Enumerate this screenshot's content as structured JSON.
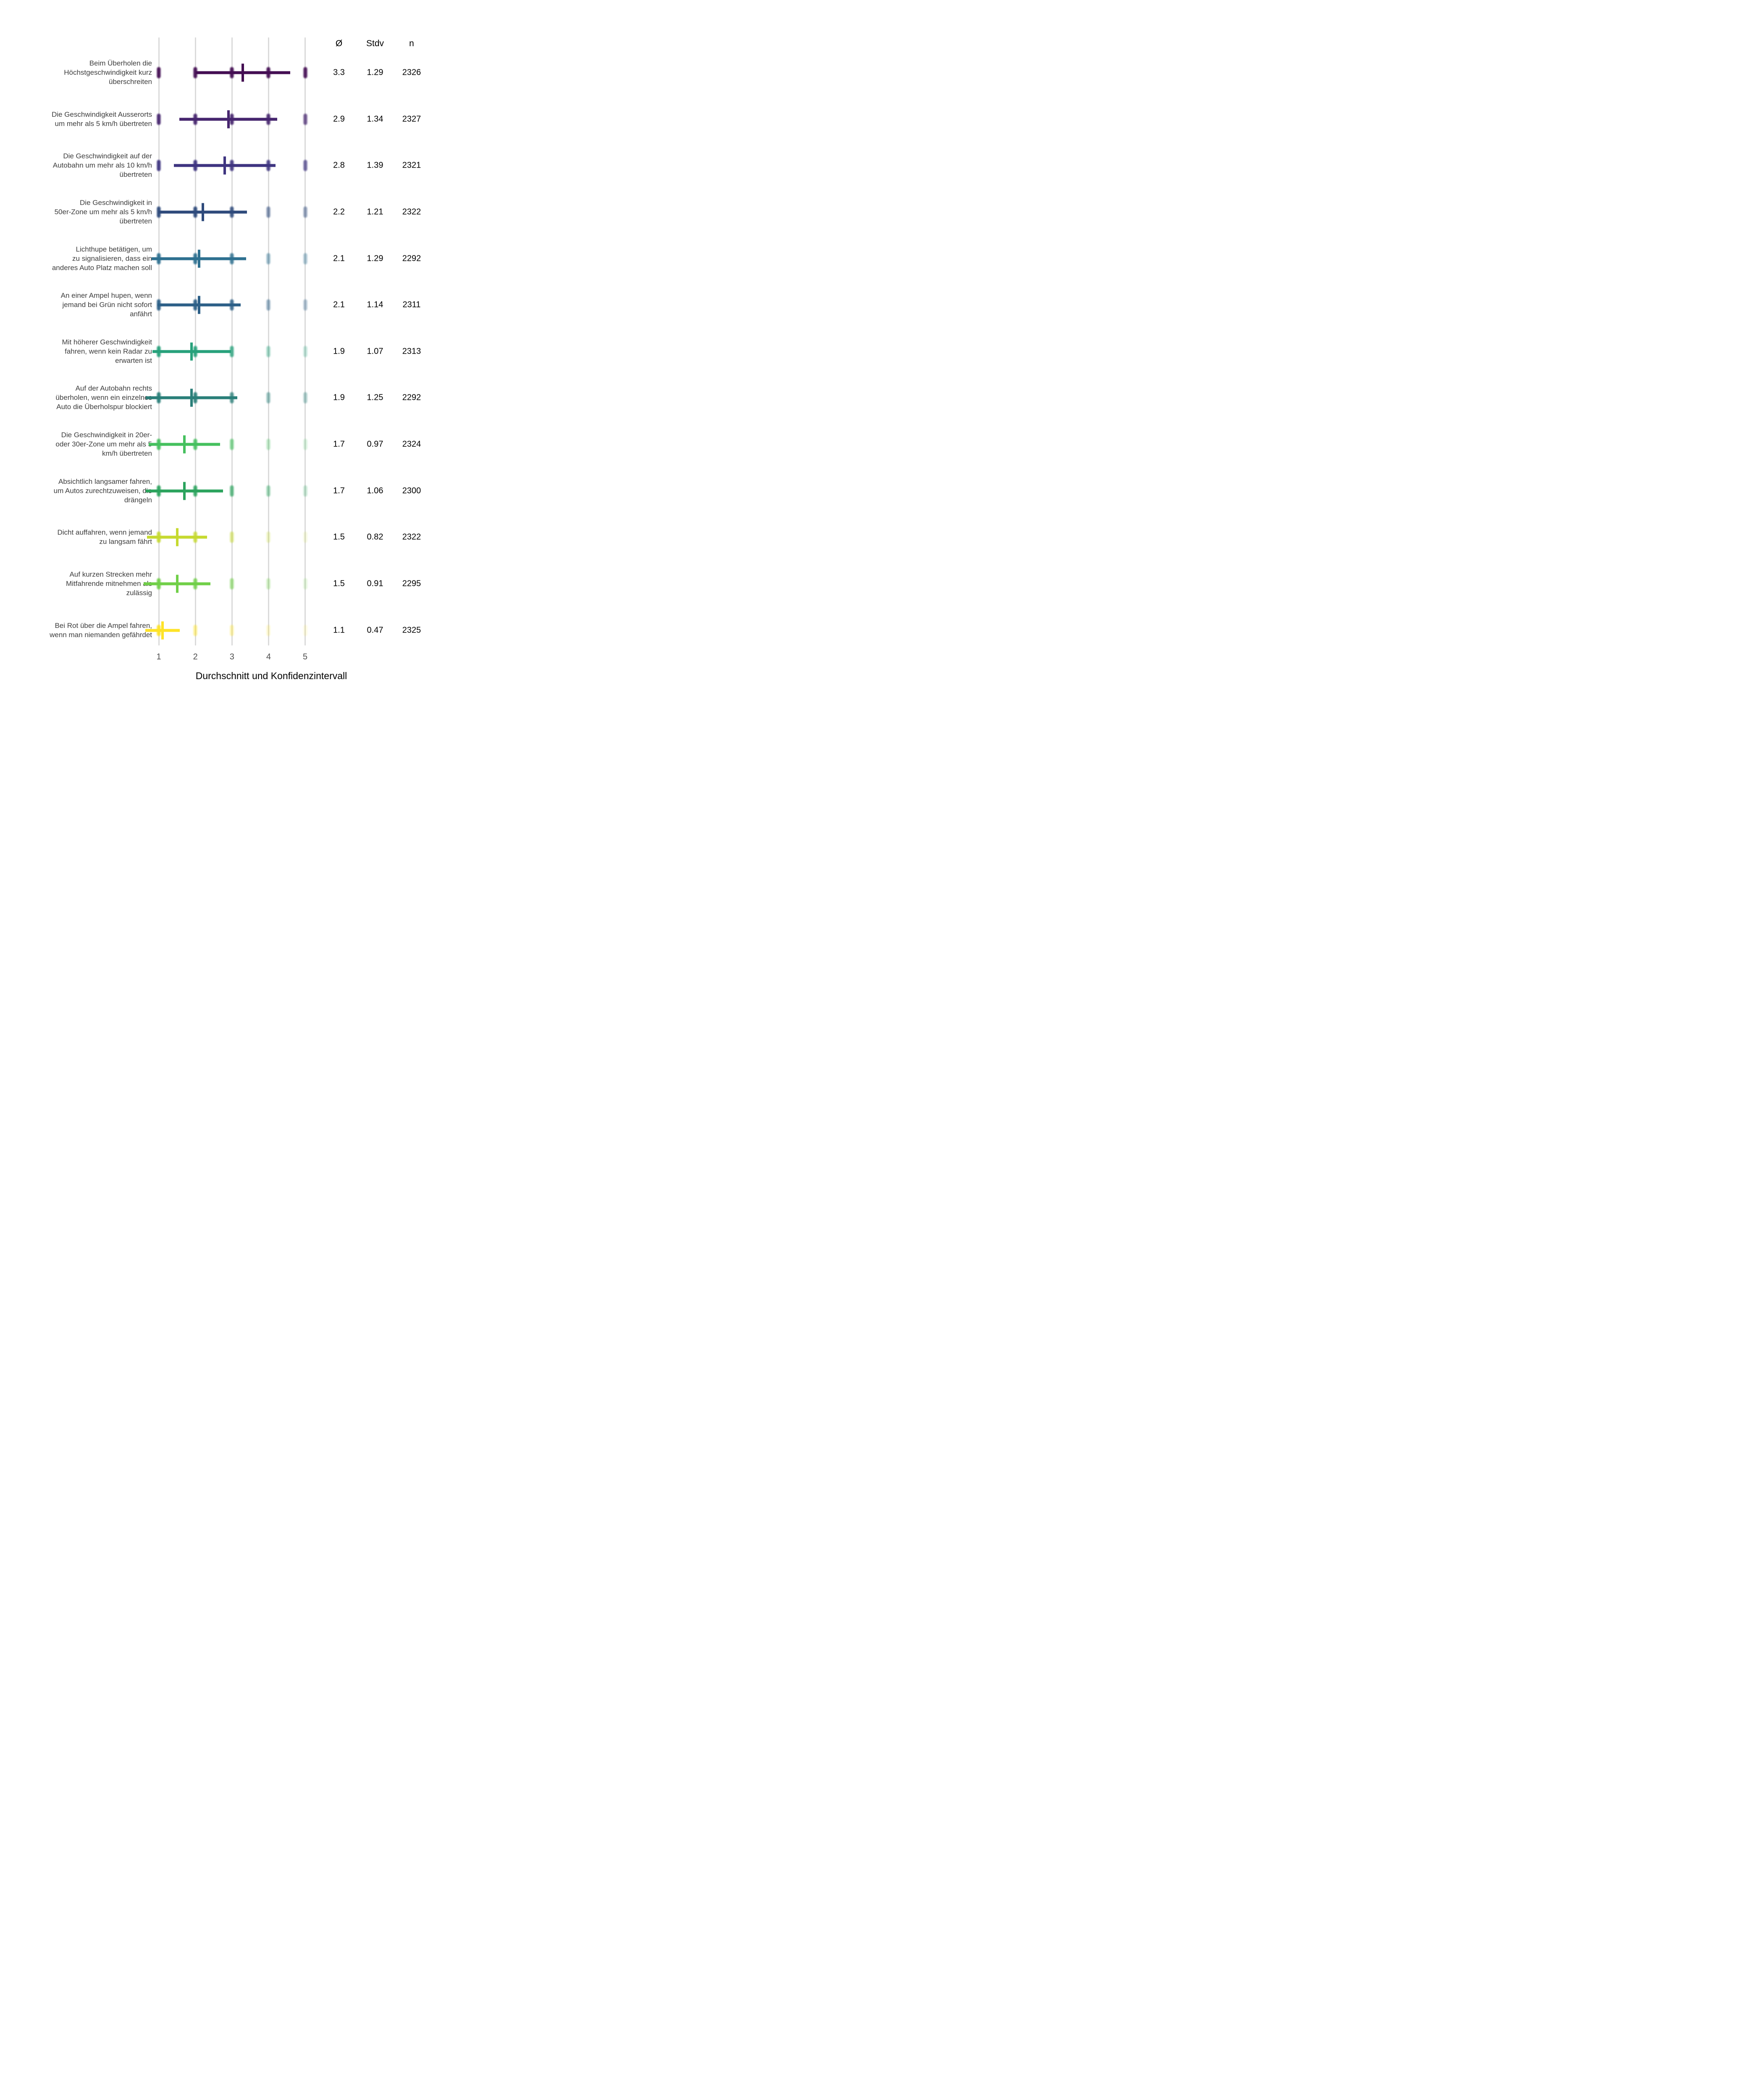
{
  "header": {
    "mean": "Ø",
    "std": "Stdv",
    "n": "n"
  },
  "axis": {
    "title": "Durchschnitt und Konfidenzintervall",
    "ticks": [
      "1",
      "2",
      "3",
      "4",
      "5"
    ]
  },
  "chart_data": {
    "type": "dot-interval",
    "title": "",
    "xlabel": "Durchschnitt und Konfidenzintervall",
    "ylabel": "",
    "x_ticks": [
      1,
      2,
      3,
      4,
      5
    ],
    "x_range": [
      0.55,
      5.3
    ],
    "grid": "vertical-only",
    "interval_rule": "bar spans mean ± stdv; tall tick marks the mean; dots at scale points 1–5 fade with response frequency",
    "columns": [
      "Ø",
      "Stdv",
      "n"
    ],
    "rows": [
      {
        "label": "Beim Überholen die\nHöchstgeschwindigkeit kurz\nüberschreiten",
        "mean": 3.3,
        "std": 1.29,
        "n": 2326,
        "mean_label": "3.3",
        "std_label": "1.29",
        "n_label": "2326",
        "color": "#440e53",
        "point_opacity": [
          0.95,
          0.95,
          0.95,
          0.95,
          0.92
        ]
      },
      {
        "label": "Die Geschwindigkeit Ausserorts\num mehr als 5 km/h übertreten",
        "mean": 2.9,
        "std": 1.34,
        "n": 2327,
        "mean_label": "2.9",
        "std_label": "1.34",
        "n_label": "2327",
        "color": "#46256e",
        "point_opacity": [
          0.95,
          0.95,
          0.92,
          0.92,
          0.75
        ]
      },
      {
        "label": "Die Geschwindigkeit auf der\nAutobahn um mehr als 10 km/h\nübertreten",
        "mean": 2.8,
        "std": 1.39,
        "n": 2321,
        "mean_label": "2.8",
        "std_label": "1.39",
        "n_label": "2321",
        "color": "#3e3480",
        "point_opacity": [
          0.95,
          0.95,
          0.9,
          0.88,
          0.72
        ]
      },
      {
        "label": "Die Geschwindigkeit in\n50er-Zone um mehr als 5 km/h\nübertreten",
        "mean": 2.2,
        "std": 1.21,
        "n": 2322,
        "mean_label": "2.2",
        "std_label": "1.21",
        "n_label": "2322",
        "color": "#2e4a7b",
        "point_opacity": [
          0.95,
          0.95,
          0.88,
          0.6,
          0.52
        ]
      },
      {
        "label": "Lichthupe betätigen, um\nzu signalisieren, dass ein\nanderes Auto Platz machen soll",
        "mean": 2.1,
        "std": 1.29,
        "n": 2292,
        "mean_label": "2.1",
        "std_label": "1.29",
        "n_label": "2292",
        "color": "#2e7090",
        "point_opacity": [
          0.95,
          0.95,
          0.85,
          0.5,
          0.42
        ]
      },
      {
        "label": "An einer Ampel hupen, wenn\njemand bei Grün nicht sofort\nanfährt",
        "mean": 2.1,
        "std": 1.14,
        "n": 2311,
        "mean_label": "2.1",
        "std_label": "1.14",
        "n_label": "2311",
        "color": "#2c5f87",
        "point_opacity": [
          0.95,
          0.95,
          0.85,
          0.5,
          0.38
        ]
      },
      {
        "label": "Mit höherer Geschwindigkeit\nfahren, wenn kein Radar zu\nerwarten ist",
        "mean": 1.9,
        "std": 1.07,
        "n": 2313,
        "mean_label": "1.9",
        "std_label": "1.07",
        "n_label": "2313",
        "color": "#27a17b",
        "point_opacity": [
          0.95,
          0.92,
          0.8,
          0.45,
          0.3
        ]
      },
      {
        "label": "Auf der Autobahn rechts\nüberholen, wenn ein einzelnes\nAuto die Überholspur blockiert",
        "mean": 1.9,
        "std": 1.25,
        "n": 2292,
        "mean_label": "1.9",
        "std_label": "1.25",
        "n_label": "2292",
        "color": "#2a7f79",
        "point_opacity": [
          0.95,
          0.92,
          0.8,
          0.5,
          0.4
        ]
      },
      {
        "label": "Die Geschwindigkeit in 20er-\noder 30er-Zone um mehr als 5\nkm/h übertreten",
        "mean": 1.7,
        "std": 0.97,
        "n": 2324,
        "mean_label": "1.7",
        "std_label": "0.97",
        "n_label": "2324",
        "color": "#45c05e",
        "point_opacity": [
          0.95,
          0.9,
          0.65,
          0.35,
          0.22
        ]
      },
      {
        "label": "Absichtlich langsamer fahren,\num Autos zurechtzuweisen, die\ndrängeln",
        "mean": 1.7,
        "std": 1.06,
        "n": 2300,
        "mean_label": "1.7",
        "std_label": "1.06",
        "n_label": "2300",
        "color": "#2ba35d",
        "point_opacity": [
          0.95,
          0.9,
          0.72,
          0.48,
          0.28
        ]
      },
      {
        "label": "Dicht auffahren, wenn jemand\nzu langsam fährt",
        "mean": 1.5,
        "std": 0.82,
        "n": 2322,
        "mean_label": "1.5",
        "std_label": "0.82",
        "n_label": "2322",
        "color": "#c6d930",
        "point_opacity": [
          0.95,
          0.85,
          0.55,
          0.3,
          0.16
        ]
      },
      {
        "label": "Auf kurzen Strecken mehr\nMitfahrende mitnehmen als\nzulässig",
        "mean": 1.5,
        "std": 0.91,
        "n": 2295,
        "mean_label": "1.5",
        "std_label": "0.91",
        "n_label": "2295",
        "color": "#70cf48",
        "point_opacity": [
          0.95,
          0.85,
          0.6,
          0.35,
          0.2
        ]
      },
      {
        "label": "Bei Rot über die Ampel fahren,\nwenn man niemanden gefährdet",
        "mean": 1.1,
        "std": 0.47,
        "n": 2325,
        "mean_label": "1.1",
        "std_label": "0.47",
        "n_label": "2325",
        "color": "#fee327",
        "point_opacity": [
          0.95,
          0.5,
          0.38,
          0.22,
          0.14
        ]
      }
    ],
    "legend": "none"
  },
  "layout_note": "Likert means chart: Ø = mean, Stdv = standard deviation, n = sample size"
}
